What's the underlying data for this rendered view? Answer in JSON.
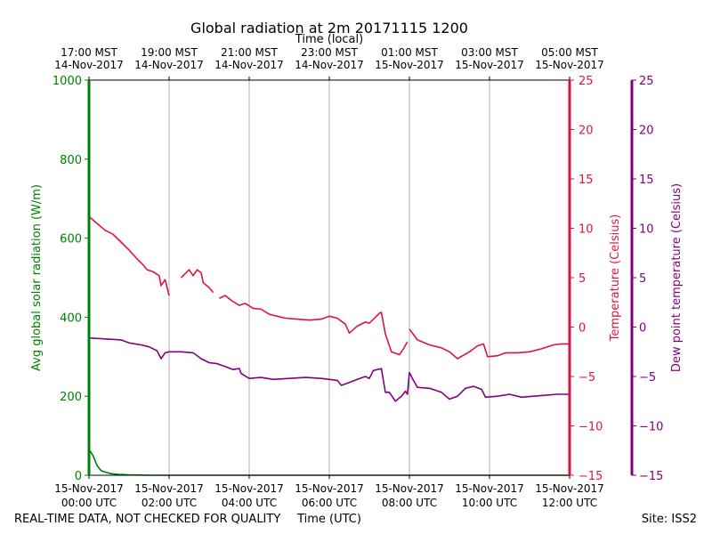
{
  "chart_data": {
    "type": "line",
    "title": "Global radiation at 2m 20171115 1200",
    "top_axis_label": "Time (local)",
    "top_ticks": [
      {
        "line1": "17:00 MST",
        "line2": "14-Nov-2017"
      },
      {
        "line1": "19:00 MST",
        "line2": "14-Nov-2017"
      },
      {
        "line1": "21:00 MST",
        "line2": "14-Nov-2017"
      },
      {
        "line1": "23:00 MST",
        "line2": "14-Nov-2017"
      },
      {
        "line1": "01:00 MST",
        "line2": "15-Nov-2017"
      },
      {
        "line1": "03:00 MST",
        "line2": "15-Nov-2017"
      },
      {
        "line1": "05:00 MST",
        "line2": "15-Nov-2017"
      }
    ],
    "bottom_axis_label": "Time (UTC)",
    "bottom_ticks": [
      {
        "line1": "15-Nov-2017",
        "line2": "00:00 UTC"
      },
      {
        "line1": "15-Nov-2017",
        "line2": "02:00 UTC"
      },
      {
        "line1": "15-Nov-2017",
        "line2": "04:00 UTC"
      },
      {
        "line1": "15-Nov-2017",
        "line2": "06:00 UTC"
      },
      {
        "line1": "15-Nov-2017",
        "line2": "08:00 UTC"
      },
      {
        "line1": "15-Nov-2017",
        "line2": "10:00 UTC"
      },
      {
        "line1": "15-Nov-2017",
        "line2": "12:00 UTC"
      }
    ],
    "xlim_hours_utc": [
      0,
      12
    ],
    "grid": "vertical",
    "left_axis": {
      "label": "Avg global solar radiation (W/m)",
      "color": "#008000",
      "ylim": [
        0,
        1000
      ],
      "ticks": [
        0,
        200,
        400,
        600,
        800,
        1000
      ]
    },
    "right_axis": {
      "label": "Temperature (Celsius)",
      "color": "#dc143c",
      "ylim": [
        -15,
        25
      ],
      "ticks": [
        25,
        20,
        15,
        10,
        5,
        0,
        -5,
        -10,
        -15
      ]
    },
    "right_axis2": {
      "label": "Dew point temperature (Celsius)",
      "color": "#800080",
      "ylim": [
        -15,
        25
      ],
      "ticks": [
        25,
        20,
        15,
        10,
        5,
        0,
        -5,
        -10,
        -15
      ]
    },
    "series": [
      {
        "axis": "left",
        "color": "#008000",
        "points": [
          [
            0,
            65
          ],
          [
            0.1,
            50
          ],
          [
            0.2,
            25
          ],
          [
            0.3,
            12
          ],
          [
            0.4,
            8
          ],
          [
            0.55,
            4
          ],
          [
            0.75,
            2
          ],
          [
            1,
            1
          ],
          [
            1.5,
            0
          ],
          [
            3,
            0
          ],
          [
            6,
            0
          ],
          [
            9,
            0
          ],
          [
            12,
            0
          ]
        ]
      },
      {
        "axis": "right",
        "color": "#dc143c",
        "points": [
          [
            0,
            11.2
          ],
          [
            0.2,
            10.5
          ],
          [
            0.4,
            9.8
          ],
          [
            0.6,
            9.4
          ],
          [
            0.8,
            8.6
          ],
          [
            1,
            7.8
          ],
          [
            1.2,
            6.9
          ],
          [
            1.35,
            6.3
          ],
          [
            1.45,
            5.8
          ],
          [
            1.6,
            5.6
          ],
          [
            1.75,
            5.2
          ],
          [
            1.8,
            4.2
          ],
          [
            1.9,
            4.8
          ],
          [
            2.0,
            3.2
          ],
          [
            null,
            null
          ],
          [
            2.3,
            5
          ],
          [
            2.5,
            5.8
          ],
          [
            2.6,
            5.2
          ],
          [
            2.7,
            5.8
          ],
          [
            2.8,
            5.5
          ],
          [
            2.85,
            4.5
          ],
          [
            3.0,
            4.0
          ],
          [
            3.1,
            3.5
          ],
          [
            null,
            null
          ],
          [
            3.25,
            2.9
          ],
          [
            3.4,
            3.2
          ],
          [
            3.55,
            2.7
          ],
          [
            3.75,
            2.2
          ],
          [
            3.9,
            2.4
          ],
          [
            4.1,
            1.9
          ],
          [
            4.3,
            1.8
          ],
          [
            4.5,
            1.3
          ],
          [
            4.7,
            1.1
          ],
          [
            4.9,
            0.9
          ],
          [
            5.2,
            0.8
          ],
          [
            5.5,
            0.7
          ],
          [
            5.8,
            0.8
          ],
          [
            6.0,
            1.1
          ],
          [
            6.2,
            0.9
          ],
          [
            6.4,
            0.3
          ],
          [
            6.5,
            -0.6
          ],
          [
            6.7,
            0.1
          ],
          [
            6.9,
            0.5
          ],
          [
            7.0,
            0.4
          ],
          [
            7.15,
            1.0
          ],
          [
            7.25,
            1.4
          ],
          [
            7.3,
            1.5
          ],
          [
            7.4,
            -0.7
          ],
          [
            7.55,
            -2.5
          ],
          [
            7.75,
            -2.8
          ],
          [
            7.85,
            -2.2
          ],
          [
            7.95,
            -1.5
          ],
          [
            null,
            null
          ],
          [
            8.0,
            -0.2
          ],
          [
            8.2,
            -1.3
          ],
          [
            8.5,
            -1.8
          ],
          [
            8.8,
            -2.1
          ],
          [
            9.0,
            -2.5
          ],
          [
            9.2,
            -3.2
          ],
          [
            9.5,
            -2.5
          ],
          [
            9.7,
            -1.9
          ],
          [
            9.85,
            -1.7
          ],
          [
            9.95,
            -3.0
          ],
          [
            10.2,
            -2.9
          ],
          [
            10.4,
            -2.6
          ],
          [
            10.7,
            -2.6
          ],
          [
            11.0,
            -2.5
          ],
          [
            11.3,
            -2.2
          ],
          [
            11.6,
            -1.8
          ],
          [
            11.8,
            -1.7
          ],
          [
            12,
            -1.7
          ]
        ]
      },
      {
        "axis": "right2",
        "color": "#800080",
        "points": [
          [
            0,
            -1.1
          ],
          [
            0.4,
            -1.2
          ],
          [
            0.8,
            -1.3
          ],
          [
            1.0,
            -1.6
          ],
          [
            1.3,
            -1.8
          ],
          [
            1.5,
            -2.0
          ],
          [
            1.7,
            -2.4
          ],
          [
            1.8,
            -3.2
          ],
          [
            1.9,
            -2.6
          ],
          [
            2.0,
            -2.5
          ],
          [
            2.3,
            -2.5
          ],
          [
            2.6,
            -2.6
          ],
          [
            2.8,
            -3.2
          ],
          [
            3.0,
            -3.6
          ],
          [
            3.2,
            -3.7
          ],
          [
            3.4,
            -4.0
          ],
          [
            3.6,
            -4.3
          ],
          [
            3.75,
            -4.2
          ],
          [
            3.8,
            -4.7
          ],
          [
            4.0,
            -5.2
          ],
          [
            4.3,
            -5.1
          ],
          [
            4.6,
            -5.3
          ],
          [
            5.0,
            -5.2
          ],
          [
            5.4,
            -5.1
          ],
          [
            5.8,
            -5.2
          ],
          [
            6.0,
            -5.3
          ],
          [
            6.2,
            -5.4
          ],
          [
            6.3,
            -5.9
          ],
          [
            6.5,
            -5.6
          ],
          [
            6.7,
            -5.3
          ],
          [
            6.9,
            -5.0
          ],
          [
            7.0,
            -5.2
          ],
          [
            7.1,
            -4.4
          ],
          [
            7.3,
            -4.2
          ],
          [
            7.4,
            -6.6
          ],
          [
            7.5,
            -6.6
          ],
          [
            7.65,
            -7.5
          ],
          [
            7.8,
            -7.0
          ],
          [
            7.9,
            -6.5
          ],
          [
            7.95,
            -6.8
          ],
          [
            8.0,
            -4.6
          ],
          [
            8.1,
            -5.4
          ],
          [
            8.2,
            -6.1
          ],
          [
            8.5,
            -6.2
          ],
          [
            8.8,
            -6.6
          ],
          [
            9.0,
            -7.3
          ],
          [
            9.2,
            -7.0
          ],
          [
            9.4,
            -6.2
          ],
          [
            9.6,
            -6.0
          ],
          [
            9.8,
            -6.3
          ],
          [
            9.9,
            -7.1
          ],
          [
            10.2,
            -7.0
          ],
          [
            10.5,
            -6.8
          ],
          [
            10.8,
            -7.1
          ],
          [
            11.1,
            -7.0
          ],
          [
            11.4,
            -6.9
          ],
          [
            11.7,
            -6.8
          ],
          [
            12,
            -6.8
          ]
        ]
      }
    ]
  },
  "footer": {
    "left_note": "REAL-TIME DATA, NOT CHECKED FOR QUALITY",
    "site": "Site: ISS2"
  }
}
